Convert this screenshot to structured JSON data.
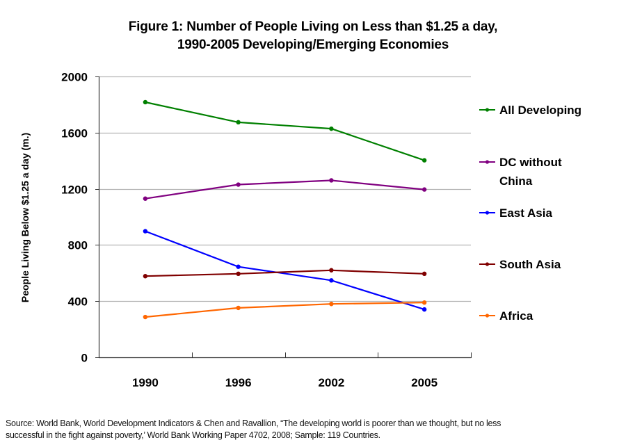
{
  "chart_data": {
    "type": "line",
    "title": "Figure 1:  Number of People Living on Less than $1.25 a day,",
    "subtitle": "1990-2005 Developing/Emerging Economies",
    "xlabel": "",
    "ylabel": "People Living Below $1.25 a day (m.)",
    "categories": [
      "1990",
      "1996",
      "2002",
      "2005"
    ],
    "ylim": [
      0,
      2000
    ],
    "yticks": [
      0,
      400,
      800,
      1200,
      1600,
      2000
    ],
    "ytick_labels": [
      "0",
      "400",
      "800",
      "1200",
      "1600",
      "2000"
    ],
    "grid": true,
    "legend_position": "right",
    "series": [
      {
        "name": "All Developing",
        "legend_lines": [
          "All Developing"
        ],
        "color": "#008000",
        "values": [
          1817,
          1674,
          1628,
          1403
        ]
      },
      {
        "name": "DC without China",
        "legend_lines": [
          "DC without",
          "China"
        ],
        "color": "#800080",
        "values": [
          1130,
          1230,
          1260,
          1195
        ]
      },
      {
        "name": "East Asia",
        "legend_lines": [
          "East Asia"
        ],
        "color": "#0000ff",
        "values": [
          898,
          645,
          548,
          341
        ]
      },
      {
        "name": "South Asia",
        "legend_lines": [
          "South Asia"
        ],
        "color": "#800000",
        "values": [
          578,
          595,
          620,
          595
        ]
      },
      {
        "name": "Africa",
        "legend_lines": [
          "Africa"
        ],
        "color": "#ff6600",
        "values": [
          287,
          352,
          380,
          390
        ]
      }
    ]
  },
  "source": {
    "line1": "Source: World Bank, World Development Indicators & Chen and Ravallion, “The developing world is poorer than we thought, but no less",
    "line2": "successful in the fight against poverty,’ World Bank Working Paper 4702, 2008; Sample: 119 Countries."
  }
}
